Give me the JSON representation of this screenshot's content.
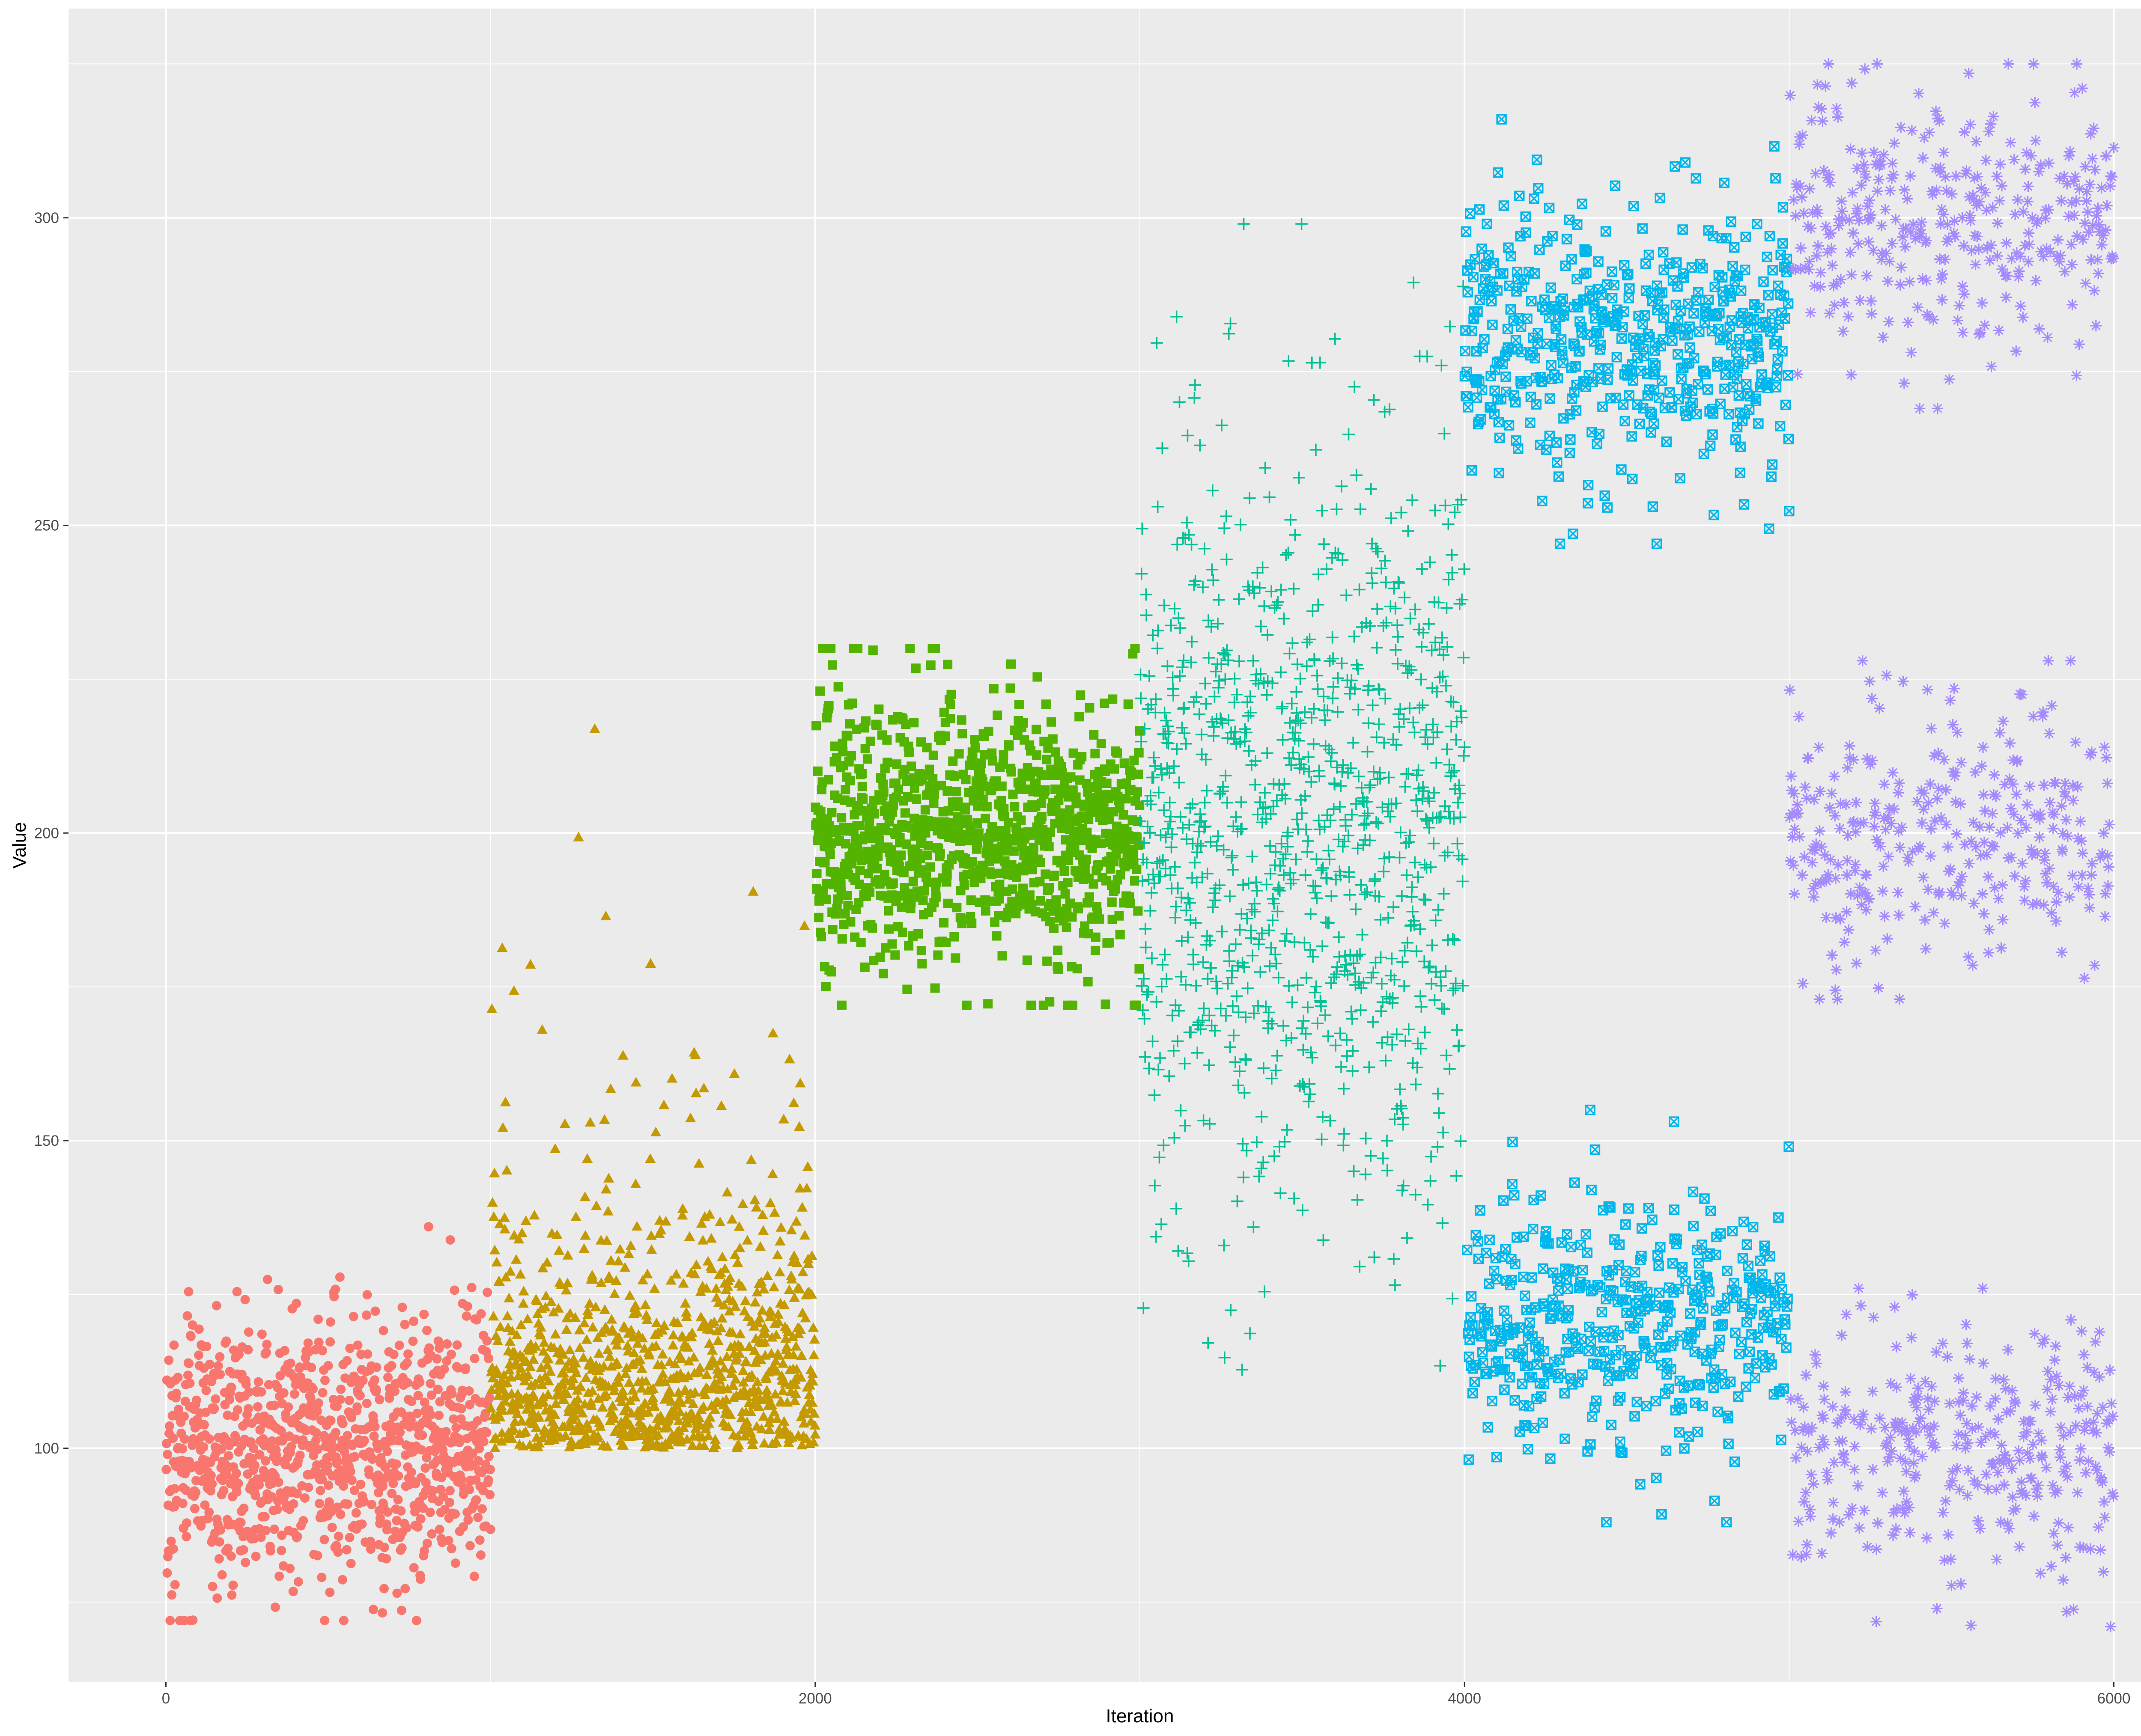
{
  "chart_data": {
    "type": "scatter",
    "title": "",
    "xlabel": "Iteration",
    "ylabel": "Value",
    "xlim": [
      -300,
      6300
    ],
    "ylim": [
      62,
      334
    ],
    "x_ticks": [
      0,
      2000,
      4000,
      6000
    ],
    "y_ticks": [
      100,
      150,
      200,
      250,
      300
    ],
    "grid": true,
    "legend": "none",
    "series": [
      {
        "iterations": [
          1,
          1000
        ],
        "shape": "circle",
        "color": "#F8766D",
        "modes": [
          {
            "center": 100,
            "spread": 10,
            "min": 72,
            "max": 136
          }
        ]
      },
      {
        "iterations": [
          1001,
          2000
        ],
        "shape": "triangle",
        "color": "#C49A00",
        "modes": [
          {
            "center": 100,
            "spread": 18,
            "skew": "right",
            "min": 100,
            "max": 232
          }
        ]
      },
      {
        "iterations": [
          2001,
          3000
        ],
        "shape": "square",
        "color": "#53B400",
        "modes": [
          {
            "center": 200,
            "spread": 10,
            "min": 172,
            "max": 230
          }
        ]
      },
      {
        "iterations": [
          3001,
          4000
        ],
        "shape": "plus",
        "color": "#00C094",
        "modes": [
          {
            "center": 200,
            "spread": 30,
            "min": 110,
            "max": 299
          }
        ]
      },
      {
        "iterations": [
          4001,
          5000
        ],
        "shape": "boxed-x",
        "color": "#00B6EB",
        "modes": [
          {
            "center": 280,
            "spread": 10,
            "min": 247,
            "max": 316
          },
          {
            "center": 120,
            "spread": 10,
            "min": 88,
            "max": 155
          }
        ]
      },
      {
        "iterations": [
          5001,
          6000
        ],
        "shape": "asterisk",
        "color": "#A58AFF",
        "modes": [
          {
            "center": 300,
            "spread": 10,
            "min": 269,
            "max": 325
          },
          {
            "center": 200,
            "spread": 10,
            "min": 173,
            "max": 228
          },
          {
            "center": 100,
            "spread": 10,
            "min": 71,
            "max": 126
          }
        ]
      }
    ]
  },
  "panel_background": "#EBEBEB",
  "grid_color": "#FFFFFF"
}
